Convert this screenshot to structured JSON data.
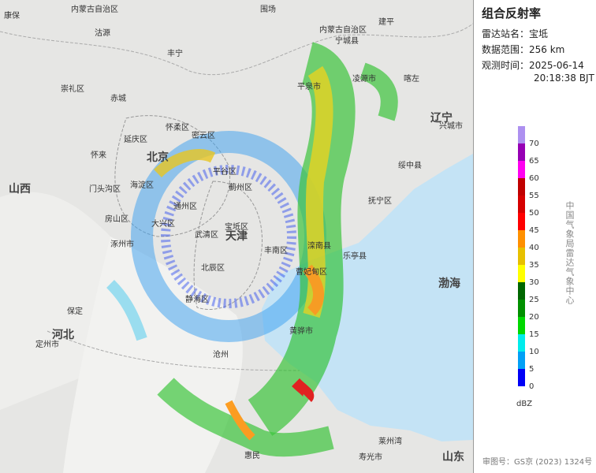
{
  "panel": {
    "title": "组合反射率",
    "rows": [
      {
        "label": "雷达站名：",
        "value": "宝坻"
      },
      {
        "label": "数据范围：",
        "value": "256 km"
      },
      {
        "label": "观测时间：",
        "value": [
          "2025-06-14",
          "20:18:38 BJT"
        ]
      }
    ]
  },
  "legend": {
    "ticks": [
      0,
      5,
      10,
      15,
      20,
      25,
      30,
      35,
      40,
      45,
      50,
      55,
      60,
      65,
      70
    ],
    "colors": [
      "#0000f6",
      "#01a0f6",
      "#00ecec",
      "#00d800",
      "#019000",
      "#006600",
      "#ffff00",
      "#e7c000",
      "#ff9000",
      "#ff0000",
      "#d60000",
      "#c00000",
      "#ff00f0",
      "#9600b4",
      "#ad90f0"
    ],
    "unit": "dBZ",
    "organization": "中国气象局雷达气象中心"
  },
  "footer": "审图号：GS京 (2023) 1324号",
  "map": {
    "labels": [
      "内蒙古自治区",
      "内蒙古自治区",
      "北京",
      "天津",
      "河北",
      "山西",
      "辽宁",
      "山东",
      "渤海",
      "莱州湾",
      "康保",
      "沽源",
      "丰宁",
      "围场",
      "建平",
      "宁城县",
      "平泉市",
      "凌源市",
      "喀左",
      "兴城市",
      "绥中县",
      "抚宁区",
      "赤城",
      "崇礼区",
      "怀来",
      "延庆区",
      "怀柔区",
      "密云区",
      "平谷区",
      "门头沟区",
      "海淀区",
      "通州区",
      "大兴区",
      "房山区",
      "涿州市",
      "武清区",
      "宝坻区",
      "蓟州区",
      "北辰区",
      "静海区",
      "丰南区",
      "滦南县",
      "乐亭县",
      "曹妃甸区",
      "定州市",
      "黄骅市",
      "惠民",
      "寿光市",
      "保定",
      "沧州"
    ]
  }
}
